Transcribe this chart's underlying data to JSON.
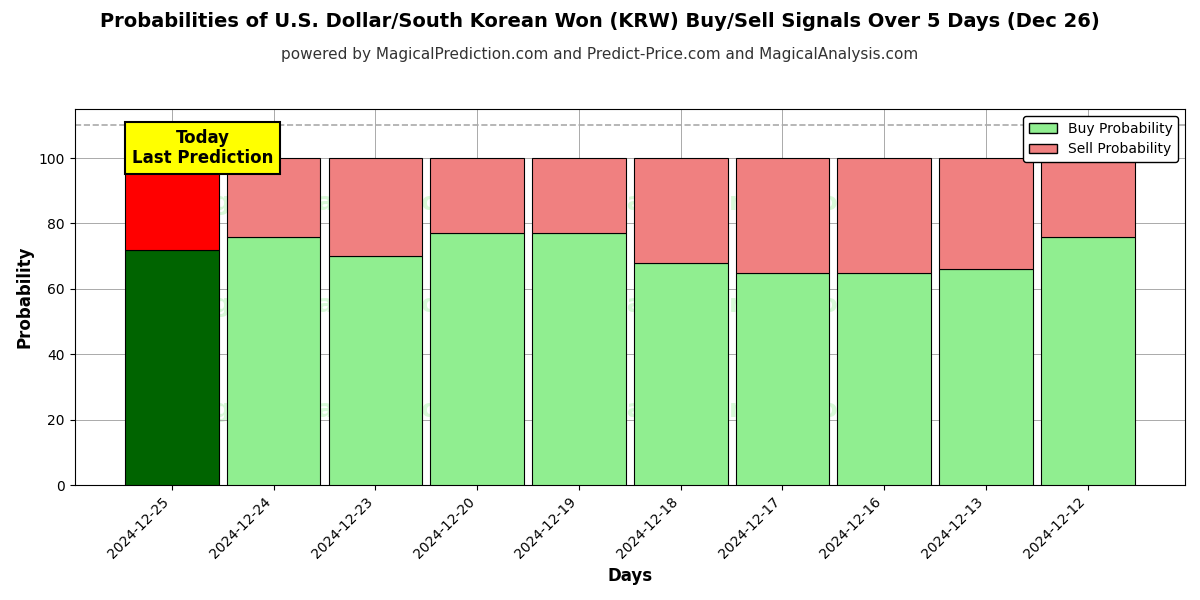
{
  "title": "Probabilities of U.S. Dollar/South Korean Won (KRW) Buy/Sell Signals Over 5 Days (Dec 26)",
  "subtitle": "powered by MagicalPrediction.com and Predict-Price.com and MagicalAnalysis.com",
  "xlabel": "Days",
  "ylabel": "Probability",
  "categories": [
    "2024-12-25",
    "2024-12-24",
    "2024-12-23",
    "2024-12-20",
    "2024-12-19",
    "2024-12-18",
    "2024-12-17",
    "2024-12-16",
    "2024-12-13",
    "2024-12-12"
  ],
  "buy_values": [
    72,
    76,
    70,
    77,
    77,
    68,
    65,
    65,
    66,
    76
  ],
  "sell_values": [
    28,
    24,
    30,
    23,
    23,
    32,
    35,
    35,
    34,
    24
  ],
  "today_buy_color": "#006400",
  "today_sell_color": "#FF0000",
  "buy_color": "#90EE90",
  "sell_color": "#F08080",
  "bar_edge_color": "#000000",
  "dashed_line_y": 110,
  "ylim": [
    0,
    115
  ],
  "yticks": [
    0,
    20,
    40,
    60,
    80,
    100
  ],
  "grid_color": "#aaaaaa",
  "bg_color": "#ffffff",
  "today_annotation": "Today\nLast Prediction",
  "today_annotation_bg": "#FFFF00",
  "legend_buy_label": "Buy Probability",
  "legend_sell_label": "Sell Probability",
  "title_fontsize": 14,
  "subtitle_fontsize": 11,
  "axis_label_fontsize": 12,
  "tick_fontsize": 10,
  "bar_width": 0.92
}
